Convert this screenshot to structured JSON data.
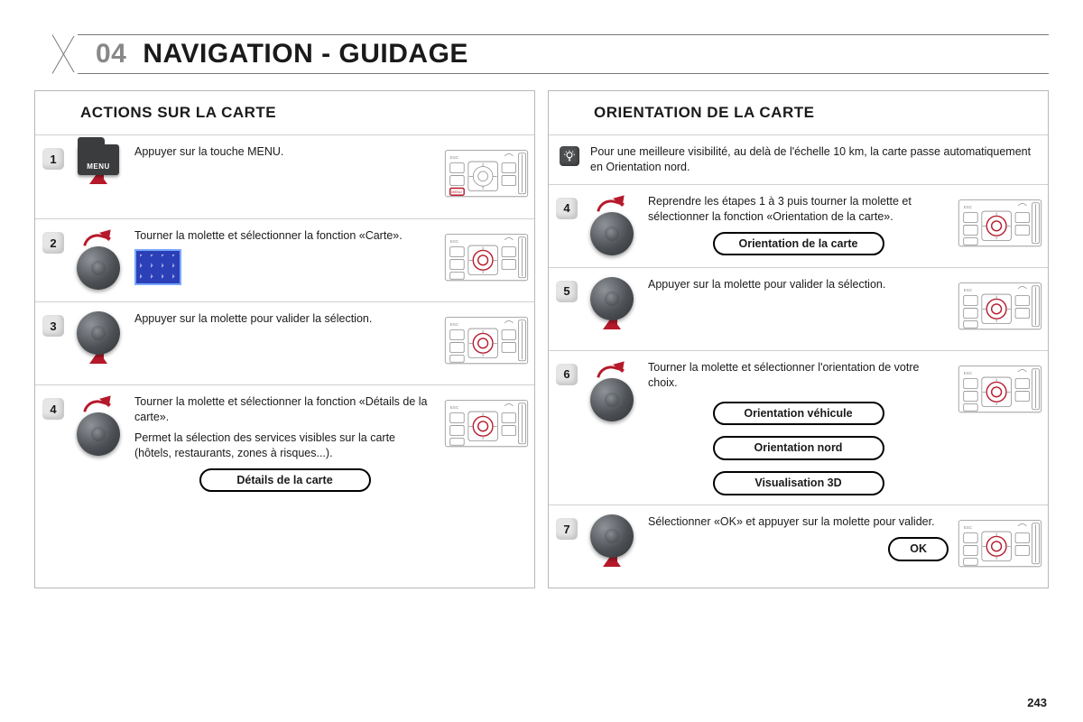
{
  "header": {
    "section_number": "04",
    "title": "NAVIGATION - GUIDAGE"
  },
  "page_number": "243",
  "colors": {
    "accent_red": "#b6192a",
    "panel_border": "#9a9a9a",
    "knob_dark": "#4d5055"
  },
  "left": {
    "heading": "ACTIONS SUR LA CARTE",
    "steps": [
      {
        "n": "1",
        "icon": "menu-chip",
        "menu_label": "MENU",
        "text": "Appuyer sur la touche MENU.",
        "panel_highlight": "menu"
      },
      {
        "n": "2",
        "icon": "knob-turn",
        "text": "Tourner la molette et sélectionner la fonction «Carte».",
        "shows_map_thumb": true,
        "panel_highlight": "dial"
      },
      {
        "n": "3",
        "icon": "knob-press",
        "text": "Appuyer sur la molette pour valider la sélection.",
        "panel_highlight": "dial"
      },
      {
        "n": "4",
        "icon": "knob-turn",
        "text": "Tourner la molette et sélectionner la fonction «Détails de la carte».",
        "text2": "Permet la sélection des services visibles sur la carte (hôtels, restaurants, zones à risques...).",
        "pill": "Détails de la carte",
        "panel_highlight": "dial"
      }
    ]
  },
  "right": {
    "heading": "ORIENTATION DE LA CARTE",
    "note": "Pour une meilleure visibilité, au delà de l'échelle 10 km, la carte passe automatiquement en Orientation nord.",
    "steps": [
      {
        "n": "4",
        "icon": "knob-turn",
        "text": "Reprendre les étapes 1 à 3 puis tourner la molette et sélectionner la fonction «Orientation de la carte».",
        "pill": "Orientation de la carte",
        "panel_highlight": "dial"
      },
      {
        "n": "5",
        "icon": "knob-press",
        "text": "Appuyer sur la molette pour valider la sélection.",
        "panel_highlight": "dial"
      },
      {
        "n": "6",
        "icon": "knob-turn",
        "text": "Tourner la molette et sélectionner l'orientation de votre choix.",
        "pills": [
          "Orientation véhicule",
          "Orientation nord",
          "Visualisation 3D"
        ],
        "panel_highlight": "dial"
      },
      {
        "n": "7",
        "icon": "knob-press",
        "text": "Sélectionner «OK» et appuyer sur la molette pour valider.",
        "pill": "OK",
        "panel_highlight": "dial"
      }
    ]
  }
}
